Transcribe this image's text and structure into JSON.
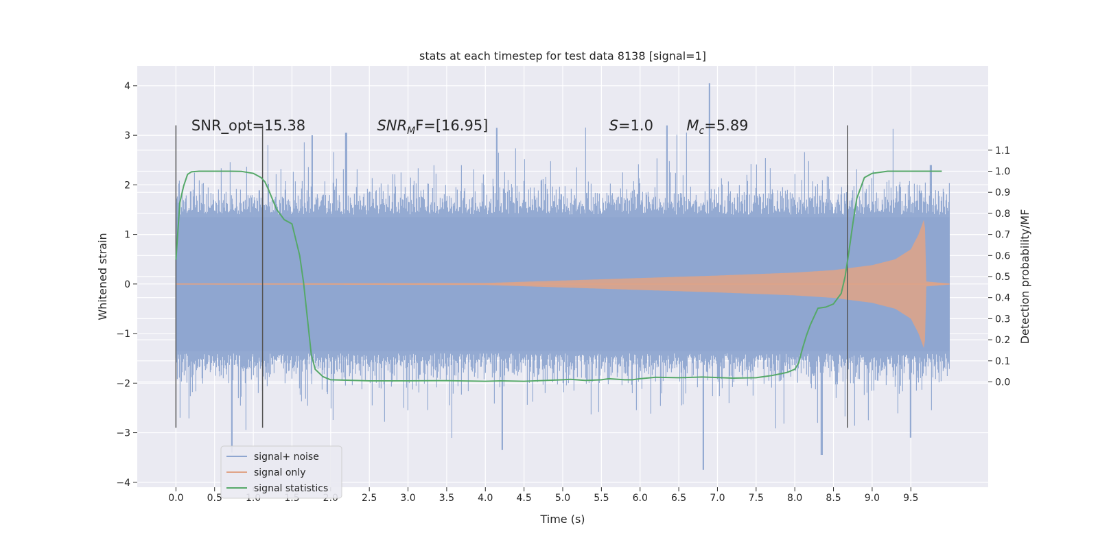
{
  "chart_data": {
    "type": "line",
    "title": "stats at each timestep for test data 8138 [signal=1]",
    "xlabel": "Time (s)",
    "ylabel": "Whitened strain",
    "ylabel_right": "Detection probability/MF",
    "xlim": [
      -0.5,
      10.5
    ],
    "ylim": [
      -4.1,
      4.4
    ],
    "ylim_right": [
      -0.5,
      1.5
    ],
    "grid": true,
    "legend_position": "lower-left",
    "x_ticks": [
      "0.0",
      "0.5",
      "1.0",
      "1.5",
      "2.0",
      "2.5",
      "3.0",
      "3.5",
      "4.0",
      "4.5",
      "5.0",
      "5.5",
      "6.0",
      "6.5",
      "7.0",
      "7.5",
      "8.0",
      "8.5",
      "9.0",
      "9.5"
    ],
    "x_tick_values": [
      0,
      0.5,
      1,
      1.5,
      2,
      2.5,
      3,
      3.5,
      4,
      4.5,
      5,
      5.5,
      6,
      6.5,
      7,
      7.5,
      8,
      8.5,
      9,
      9.5
    ],
    "y_ticks": [
      "4",
      "3",
      "2",
      "1",
      "0",
      "−1",
      "−2",
      "−3",
      "−4"
    ],
    "y_tick_values": [
      4,
      3,
      2,
      1,
      0,
      -1,
      -2,
      -3,
      -4
    ],
    "y_right_ticks": [
      "1.1",
      "1.0",
      "0.9",
      "0.8",
      "0.7",
      "0.6",
      "0.5",
      "0.4",
      "0.3",
      "0.2",
      "0.1",
      "0.0"
    ],
    "y_right_tick_values": [
      1.1,
      1.0,
      0.9,
      0.8,
      0.7,
      0.6,
      0.5,
      0.4,
      0.3,
      0.2,
      0.1,
      0.0
    ],
    "annotations": [
      {
        "text": "SNR_opt=15.38",
        "x": 0.2,
        "y": 3.1,
        "style": "normal",
        "sub": "",
        "rest": ""
      },
      {
        "text": "SNR",
        "x": 2.6,
        "y": 3.1,
        "style": "italic",
        "sub": "M",
        "rest": "F=[16.95]"
      },
      {
        "text": "S",
        "x": 5.6,
        "y": 3.1,
        "style": "italic",
        "sub": "",
        "rest": "=1.0"
      },
      {
        "text": "M",
        "x": 6.6,
        "y": 3.1,
        "style": "italic",
        "sub": "c",
        "rest": "=5.89"
      }
    ],
    "vertical_markers": [
      0.0,
      1.12,
      8.68
    ],
    "vertical_marker_range": [
      -2.9,
      3.2
    ],
    "series": [
      {
        "name": "signal+ noise",
        "color": "#8fa6d0",
        "render": "noise-band",
        "x_range": [
          0.0,
          10.0
        ],
        "core_band": [
          -1.35,
          1.35
        ],
        "approx_envelope": {
          "max_upper": 4.05,
          "min_lower": -3.75,
          "peaks": [
            [
              0.72,
              -3.4
            ],
            [
              1.76,
              3.0
            ],
            [
              2.2,
              3.05
            ],
            [
              4.22,
              -3.35
            ],
            [
              4.15,
              3.15
            ],
            [
              6.35,
              3.2
            ],
            [
              6.82,
              -3.75
            ],
            [
              6.9,
              4.05
            ],
            [
              8.35,
              -3.45
            ],
            [
              9.5,
              -3.1
            ],
            [
              9.76,
              2.4
            ]
          ]
        }
      },
      {
        "name": "signal only",
        "color": "#e0a386",
        "render": "chirp",
        "x_range": [
          0.0,
          10.0
        ],
        "merger_time": 9.68,
        "amplitude_points": [
          [
            0.0,
            0.01
          ],
          [
            4.0,
            0.02
          ],
          [
            5.0,
            0.07
          ],
          [
            6.0,
            0.12
          ],
          [
            7.0,
            0.17
          ],
          [
            8.0,
            0.23
          ],
          [
            8.5,
            0.28
          ],
          [
            9.0,
            0.38
          ],
          [
            9.3,
            0.5
          ],
          [
            9.5,
            0.7
          ],
          [
            9.6,
            1.0
          ],
          [
            9.68,
            1.35
          ],
          [
            9.7,
            0.05
          ],
          [
            10.0,
            0.01
          ]
        ]
      },
      {
        "name": "signal statistics",
        "color": "#55a868",
        "axis": "right",
        "x": [
          0.0,
          0.05,
          0.1,
          0.15,
          0.2,
          0.3,
          0.5,
          0.7,
          0.85,
          1.0,
          1.1,
          1.15,
          1.2,
          1.3,
          1.4,
          1.5,
          1.6,
          1.65,
          1.7,
          1.75,
          1.8,
          1.9,
          2.0,
          2.2,
          2.5,
          3.0,
          3.5,
          4.0,
          4.2,
          4.5,
          5.0,
          5.1,
          5.3,
          5.5,
          5.6,
          5.8,
          5.9,
          6.0,
          6.2,
          6.5,
          6.8,
          7.0,
          7.2,
          7.5,
          7.7,
          7.9,
          8.0,
          8.05,
          8.1,
          8.15,
          8.2,
          8.3,
          8.4,
          8.5,
          8.6,
          8.65,
          8.7,
          8.75,
          8.8,
          8.85,
          8.9,
          9.0,
          9.2,
          9.5,
          9.9
        ],
        "y": [
          0.58,
          0.85,
          0.93,
          0.985,
          0.997,
          1.0,
          1.0,
          1.0,
          0.999,
          0.99,
          0.97,
          0.95,
          0.91,
          0.82,
          0.77,
          0.75,
          0.6,
          0.47,
          0.3,
          0.13,
          0.06,
          0.025,
          0.01,
          0.008,
          0.005,
          0.005,
          0.006,
          0.003,
          0.005,
          0.003,
          0.01,
          0.012,
          0.007,
          0.01,
          0.015,
          0.01,
          0.01,
          0.015,
          0.022,
          0.02,
          0.023,
          0.021,
          0.018,
          0.02,
          0.03,
          0.045,
          0.06,
          0.09,
          0.16,
          0.22,
          0.27,
          0.35,
          0.355,
          0.37,
          0.42,
          0.5,
          0.62,
          0.75,
          0.87,
          0.92,
          0.97,
          0.99,
          1.0,
          1.0,
          1.0
        ]
      }
    ]
  }
}
